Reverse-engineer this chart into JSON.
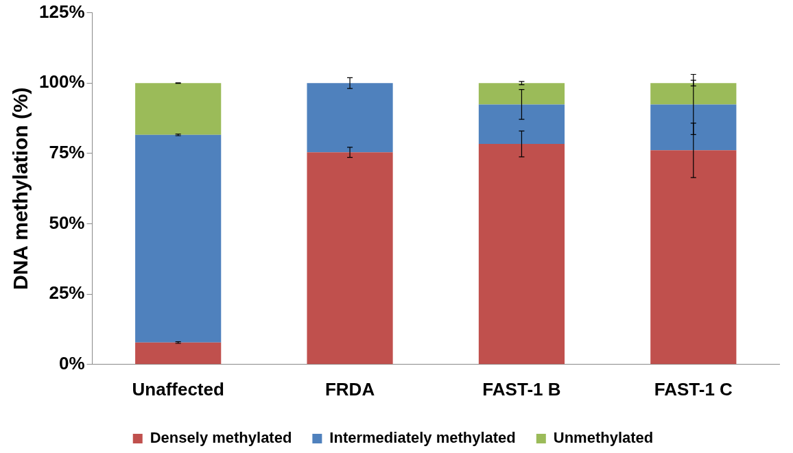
{
  "chart_data": {
    "type": "bar",
    "ylabel": "DNA methylation (%)",
    "categories": [
      "Unaffected",
      "FRDA",
      "FAST-1 B",
      "FAST-1 C"
    ],
    "stacked": true,
    "series": [
      {
        "name": "Densely methylated",
        "color": "#c0504d",
        "values": [
          7.8,
          75.4,
          78.4,
          76.1
        ],
        "errors": [
          0.3,
          1.8,
          4.6,
          9.7
        ]
      },
      {
        "name": "Intermediately methylated",
        "color": "#4f81bd",
        "values": [
          73.8,
          24.6,
          14.0,
          16.3
        ],
        "errors": [
          0.3,
          1.9,
          5.3,
          10.7
        ]
      },
      {
        "name": "Unmethylated",
        "color": "#9bbb59",
        "values": [
          18.4,
          0,
          7.6,
          7.6
        ],
        "errors": [
          0.1,
          null,
          0.6,
          1.0
        ]
      }
    ],
    "ylim": [
      0,
      125
    ],
    "yticks": [
      {
        "value": 0,
        "label": "0%"
      },
      {
        "value": 25,
        "label": "25%"
      },
      {
        "value": 50,
        "label": "50%"
      },
      {
        "value": 75,
        "label": "75%"
      },
      {
        "value": 100,
        "label": "100%"
      },
      {
        "value": 125,
        "label": "125%"
      }
    ],
    "grid": false,
    "legend": "bottom"
  }
}
